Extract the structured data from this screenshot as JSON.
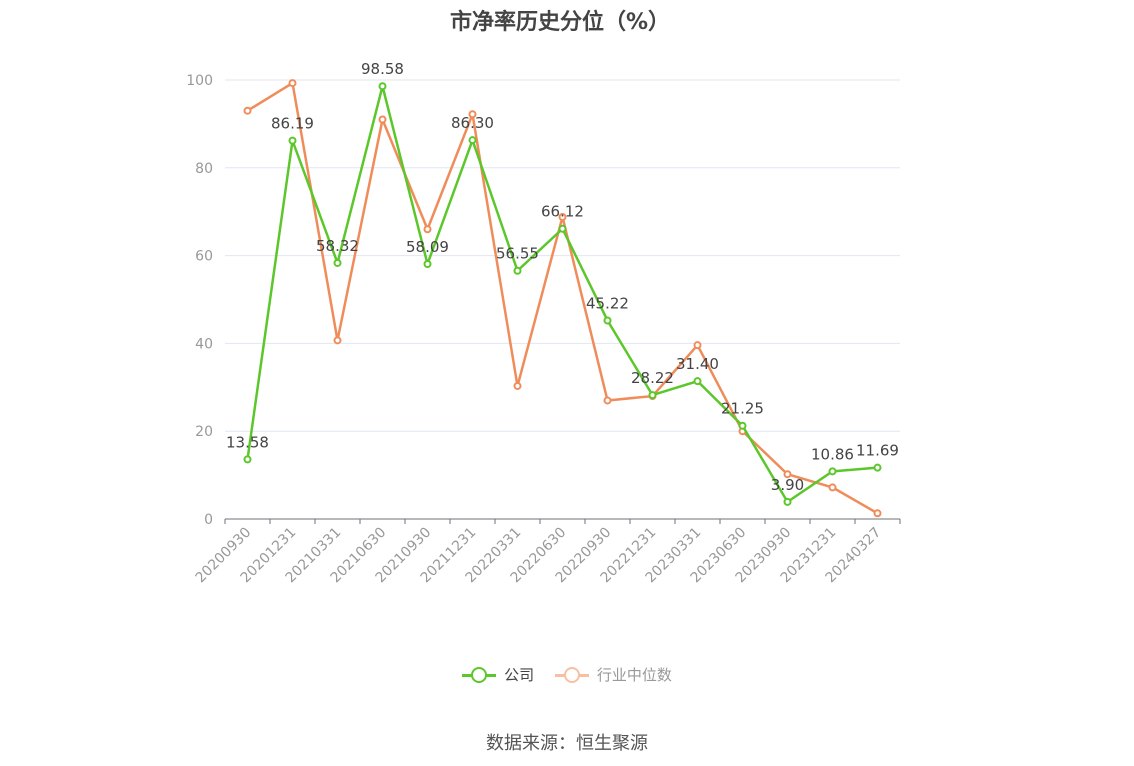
{
  "chart_data": {
    "type": "line",
    "title": "市净率历史分位（%）",
    "categories": [
      "20200930",
      "20201231",
      "20210331",
      "20210630",
      "20210930",
      "20211231",
      "20220331",
      "20220630",
      "20220930",
      "20221231",
      "20230331",
      "20230630",
      "20230930",
      "20231231",
      "20240327"
    ],
    "ylim": [
      0,
      100
    ],
    "yticks": [
      "0",
      "20",
      "40",
      "60",
      "80",
      "100"
    ],
    "grid": true,
    "legend_position": "bottom",
    "series": [
      {
        "name": "公司",
        "color": "#5cc72a",
        "values": [
          13.58,
          86.19,
          58.32,
          98.58,
          58.09,
          86.3,
          56.55,
          66.12,
          45.22,
          28.22,
          31.4,
          21.25,
          3.9,
          10.86,
          11.69
        ],
        "labels": [
          "13.58",
          "86.19",
          "58.32",
          "98.58",
          "58.09",
          "86.30",
          "56.55",
          "66.12",
          "45.22",
          "28.22",
          "31.40",
          "21.25",
          "3.90",
          "10.86",
          "11.69"
        ]
      },
      {
        "name": "行业中位数",
        "color": "#f08c5a",
        "values": [
          93.0,
          99.3,
          40.7,
          91.0,
          66.0,
          92.2,
          30.3,
          68.8,
          27.0,
          28.0,
          39.6,
          20.0,
          10.2,
          7.2,
          1.3
        ]
      }
    ]
  },
  "legend": {
    "company": {
      "label": "公司",
      "color": "#5cc72a"
    },
    "industry": {
      "label": "行业中位数",
      "color": "#f9bfa1"
    }
  },
  "source": "数据来源：恒生聚源"
}
